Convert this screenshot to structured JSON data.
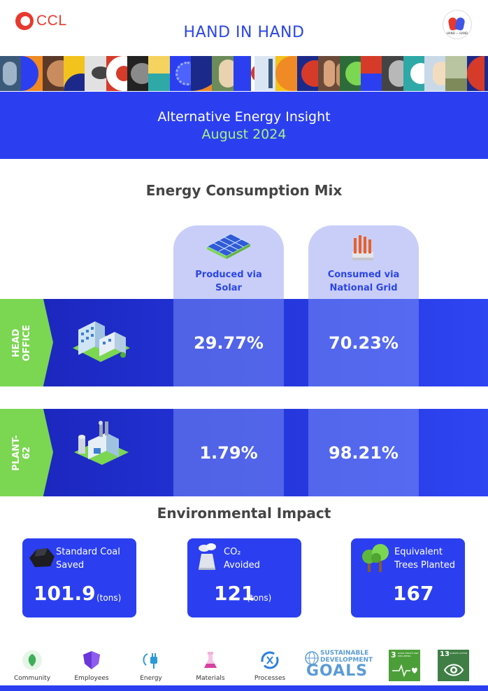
{
  "header": {
    "brand": "CCL",
    "title": "HAND IN HAND",
    "badge_text": "HAND — HAND"
  },
  "banner": {
    "line1": "Alternative Energy Insight",
    "line2": "August 2024"
  },
  "mix": {
    "title": "Energy Consumption Mix",
    "columns": [
      {
        "label_line1": "Produced via",
        "label_line2": "Solar",
        "icon": "solar-panel-icon"
      },
      {
        "label_line1": "Consumed via",
        "label_line2": "National Grid",
        "icon": "power-grid-icon"
      }
    ],
    "rows": [
      {
        "label": "HEAD\nOFFICE",
        "icon": "office-building-icon",
        "solar": "29.77%",
        "grid": "70.23%"
      },
      {
        "label": "PLANT-62",
        "icon": "factory-icon",
        "solar": "1.79%",
        "grid": "98.21%"
      }
    ]
  },
  "impact": {
    "title": "Environmental Impact",
    "cards": [
      {
        "line1": "Standard Coal",
        "line2": "Saved",
        "value": "101.9",
        "unit": "(tons)",
        "icon": "coal-icon"
      },
      {
        "line1": "CO₂",
        "line2": "Avoided",
        "value": "121",
        "unit": "(tons)",
        "icon": "cooling-tower-icon"
      },
      {
        "line1": "Equivalent",
        "line2": "Trees Planted",
        "value": "167",
        "unit": "",
        "icon": "trees-icon"
      }
    ]
  },
  "footer": {
    "items": [
      {
        "label": "Community",
        "icon": "leaf-hands-icon",
        "color": "#3fae5b"
      },
      {
        "label": "Employees",
        "icon": "shield-icon",
        "color": "#6a37d8"
      },
      {
        "label": "Energy",
        "icon": "plug-icon",
        "color": "#2b9ad6"
      },
      {
        "label": "Materials",
        "icon": "flask-icon",
        "color": "#d640a0"
      },
      {
        "label": "Processes",
        "icon": "cycle-icon",
        "color": "#2b7fe0"
      }
    ],
    "sdg": {
      "line1": "SUSTAINABLE",
      "line2": "DEVELOPMENT",
      "line3": "GOALS"
    },
    "goal3": {
      "number": "3",
      "text": "GOOD HEALTH AND WELL-BEING",
      "color": "#4c9f38"
    },
    "goal13": {
      "number": "13",
      "text": "CLIMATE ACTION",
      "color": "#3f7e44"
    }
  },
  "colors": {
    "primary": "#2b3ff0",
    "accent_green": "#7bd652",
    "brand_red": "#e8392f",
    "highlight": "#a8f28a"
  }
}
